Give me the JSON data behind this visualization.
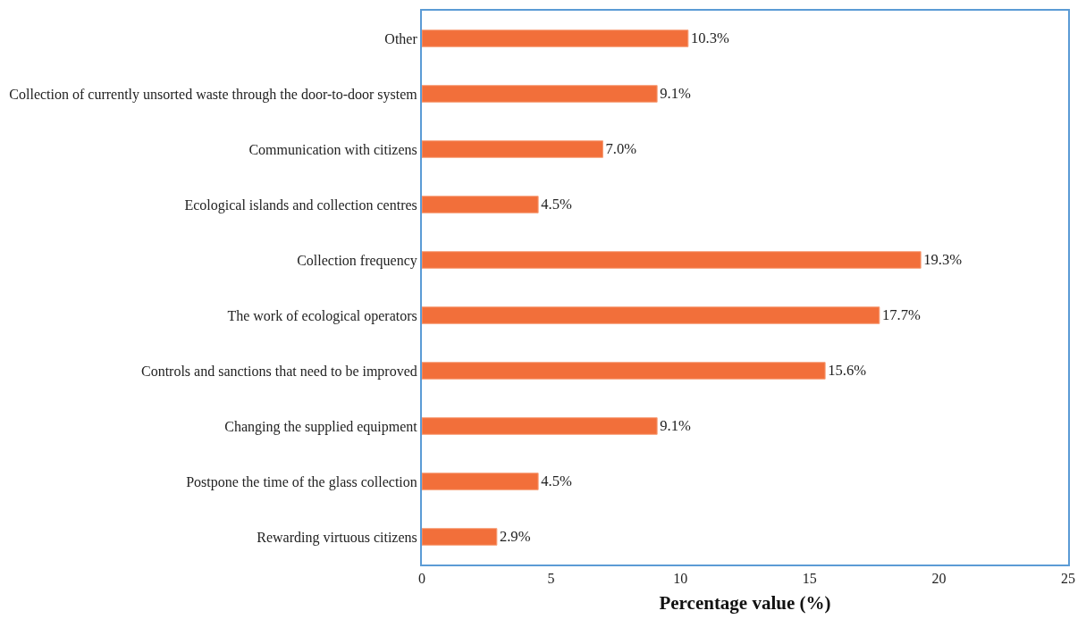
{
  "chart_data": {
    "type": "bar",
    "orientation": "horizontal",
    "xlabel": "Percentage value (%)",
    "categories": [
      "Other",
      "Collection of currently unsorted waste through the door-to-door system",
      "Communication with citizens",
      "Ecological islands and collection centres",
      "Collection frequency",
      "The work of ecological operators",
      "Controls and sanctions that need to be improved",
      "Changing the supplied equipment",
      "Postpone the time of the glass collection",
      "Rewarding virtuous citizens"
    ],
    "values": [
      10.3,
      9.1,
      7.0,
      4.5,
      19.3,
      17.7,
      15.6,
      9.1,
      4.5,
      2.9
    ],
    "value_labels": [
      "10.3%",
      "9.1%",
      "7.0%",
      "4.5%",
      "19.3%",
      "17.7%",
      "15.6%",
      "9.1%",
      "4.5%",
      "2.9%"
    ],
    "color": "#f26f3a",
    "xlim": [
      0,
      25
    ],
    "xticks": [
      0,
      5,
      10,
      15,
      20,
      25
    ]
  }
}
